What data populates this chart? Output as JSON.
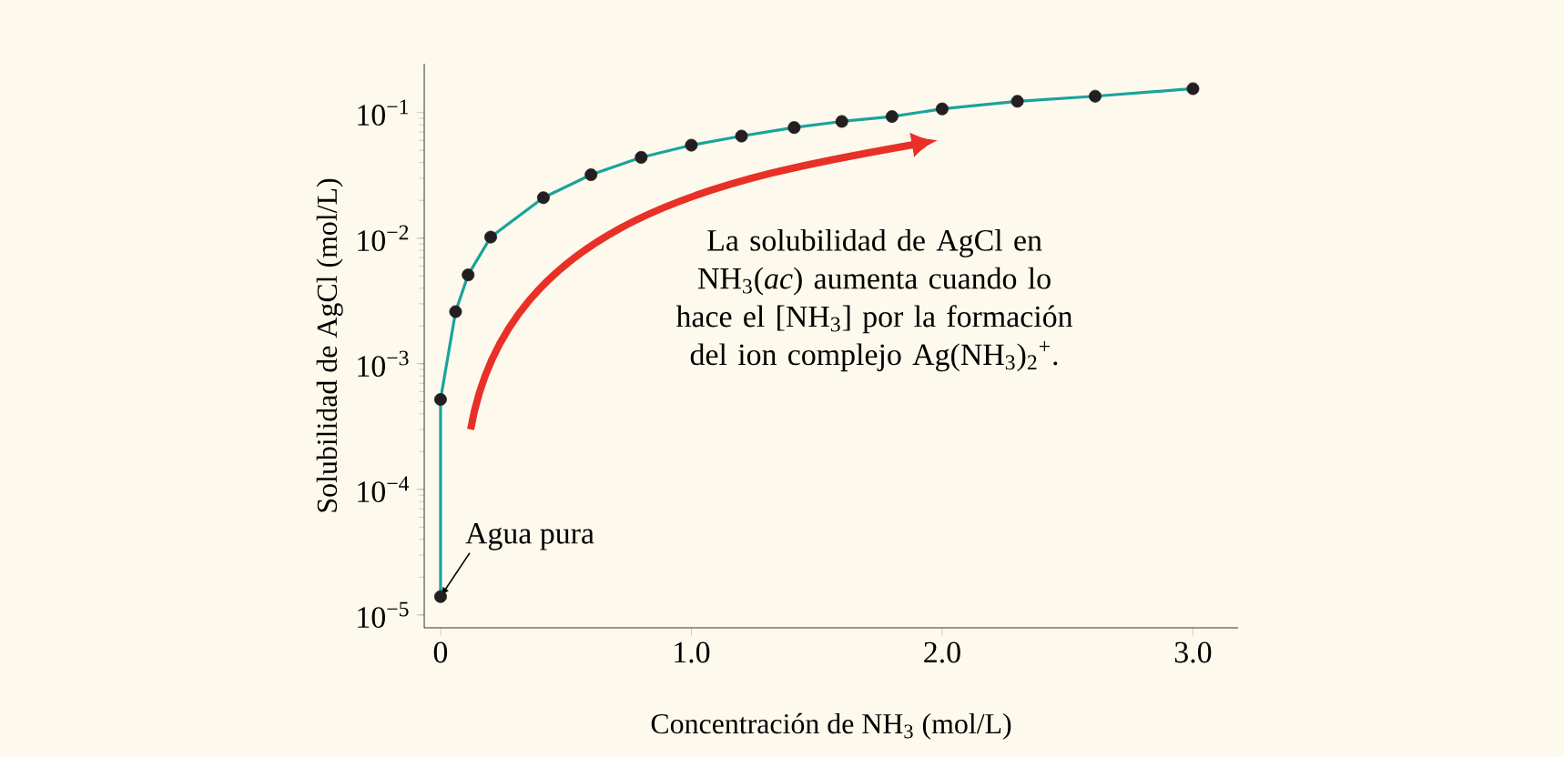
{
  "chart_data": {
    "type": "line",
    "xlabel": "Concentración de NH$_{3}$ (mol/L)",
    "ylabel": "Solubilidad de AgCl (mol/L)",
    "log": "y",
    "xlim": [
      -0.065,
      3.18
    ],
    "ylim": [
      7.9e-06,
      0.245
    ],
    "xticks": [
      {
        "value": 0,
        "label": "0"
      },
      {
        "value": 1,
        "label": "1.0"
      },
      {
        "value": 2,
        "label": "2.0"
      },
      {
        "value": 3,
        "label": "3.0"
      }
    ],
    "yticks": [
      {
        "value": 1e-05,
        "label": "10$^{−5}$"
      },
      {
        "value": 0.0001,
        "label": "10$^{−4}$"
      },
      {
        "value": 0.001,
        "label": "10$^{−3}$"
      },
      {
        "value": 0.01,
        "label": "10$^{−2}$"
      },
      {
        "value": 0.1,
        "label": "10$^{−1}$"
      }
    ],
    "x": [
      0,
      0,
      0.06,
      0.11,
      0.2,
      0.41,
      0.6,
      0.8,
      1.0,
      1.2,
      1.41,
      1.6,
      1.8,
      2.0,
      2.3,
      2.61,
      3.0
    ],
    "series": [
      {
        "color": "#1aa39a",
        "marker": "none",
        "values": [
          1.4e-05,
          0.00052,
          0.0026,
          0.0051,
          0.0102,
          0.021,
          0.032,
          0.044,
          0.055,
          0.065,
          0.076,
          0.085,
          0.093,
          0.107,
          0.123,
          0.135,
          0.155
        ]
      },
      {
        "type": "scatter",
        "color": "#231f20",
        "marker": "circle",
        "values": [
          1.4e-05,
          0.00052,
          0.0026,
          0.0051,
          0.0102,
          0.021,
          0.032,
          0.044,
          0.055,
          0.065,
          0.076,
          0.085,
          0.093,
          0.107,
          0.123,
          0.135,
          0.155
        ]
      }
    ],
    "annotations": [
      {
        "text": "Agua pura",
        "x": 0,
        "y": 1.4e-05
      },
      "La solubilidad de AgCl en NH$_{3}$(*ac*) aumenta cuando lo hace el [NH$_{3}$] por la formación del ion complejo Ag(NH$_{3}$)$_{2}$$^{+}$."
    ]
  }
}
